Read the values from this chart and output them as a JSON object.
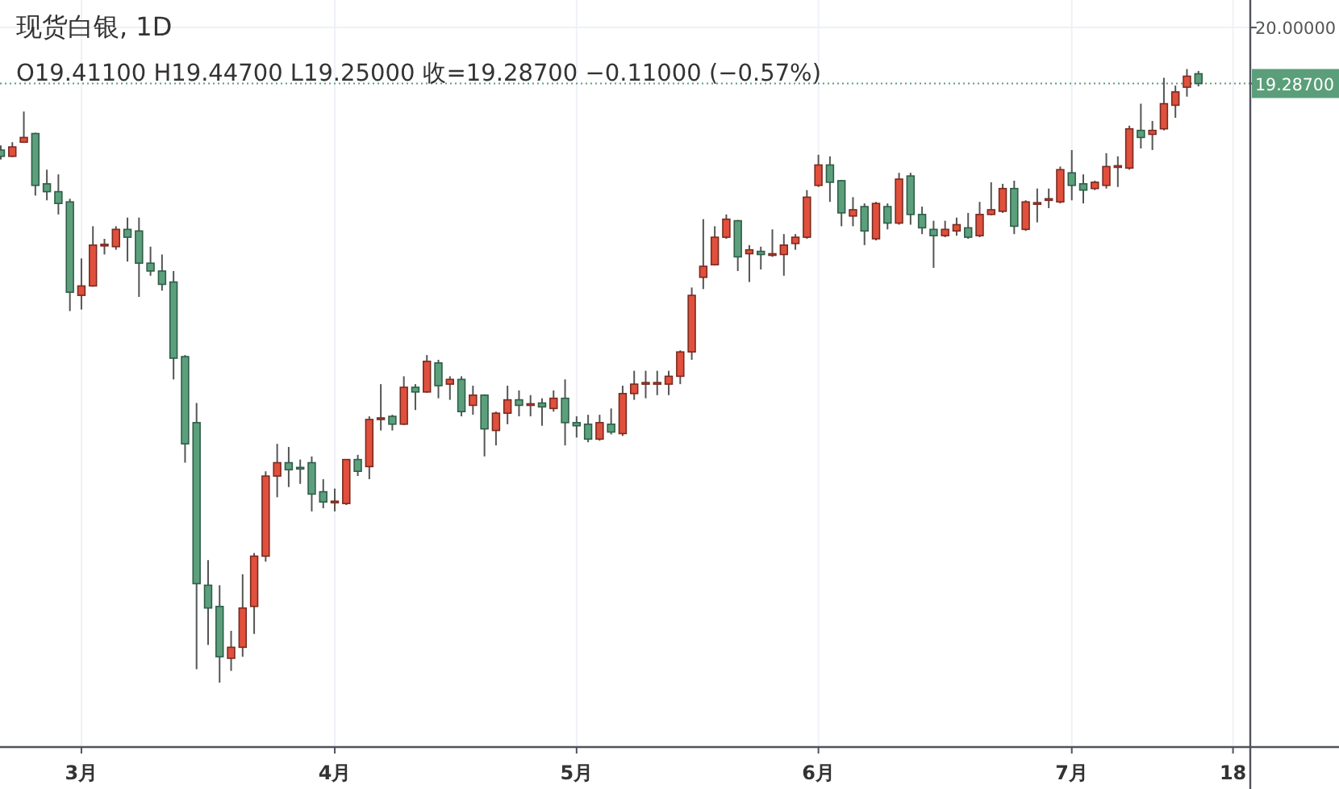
{
  "chart_data": {
    "type": "candlestick",
    "title": "现货白银, 1D",
    "subtitle": "O19.41100  H19.44700  L19.25000  收=19.28700  −0.11000 (−0.57%)",
    "categories": [
      null,
      null,
      null,
      null,
      null,
      null,
      null,
      "3月",
      null,
      null,
      null,
      null,
      null,
      null,
      null,
      null,
      null,
      null,
      null,
      null,
      null,
      null,
      null,
      null,
      null,
      null,
      null,
      null,
      null,
      "4月",
      null,
      null,
      null,
      null,
      null,
      null,
      null,
      null,
      null,
      null,
      null,
      null,
      null,
      null,
      null,
      null,
      null,
      null,
      null,
      null,
      "5月",
      null,
      null,
      null,
      null,
      null,
      null,
      null,
      null,
      null,
      null,
      null,
      null,
      null,
      null,
      null,
      null,
      null,
      null,
      null,
      null,
      "6月",
      null,
      null,
      null,
      null,
      null,
      null,
      null,
      null,
      null,
      null,
      null,
      null,
      null,
      null,
      null,
      null,
      null,
      null,
      null,
      null,
      null,
      "7月",
      null,
      null,
      null,
      null,
      null,
      null,
      null,
      null,
      null,
      null,
      null,
      null,
      null,
      "18"
    ],
    "ohlc": [
      [
        18.44,
        18.5,
        18.32,
        18.36
      ],
      [
        18.36,
        18.54,
        18.35,
        18.48
      ],
      [
        18.54,
        18.93,
        18.53,
        18.6
      ],
      [
        18.65,
        18.66,
        17.86,
        17.99
      ],
      [
        18.01,
        18.19,
        17.8,
        17.91
      ],
      [
        17.91,
        18.13,
        17.62,
        17.76
      ],
      [
        17.78,
        17.82,
        16.39,
        16.63
      ],
      [
        16.59,
        17.06,
        16.41,
        16.71
      ],
      [
        16.71,
        17.47,
        16.7,
        17.23
      ],
      [
        17.23,
        17.31,
        17.11,
        17.24
      ],
      [
        17.21,
        17.47,
        17.17,
        17.43
      ],
      [
        17.43,
        17.58,
        17.02,
        17.33
      ],
      [
        17.41,
        17.58,
        16.57,
        17.0
      ],
      [
        17.0,
        17.21,
        16.84,
        16.9
      ],
      [
        16.9,
        17.11,
        16.65,
        16.73
      ],
      [
        16.76,
        16.9,
        15.52,
        15.79
      ],
      [
        15.81,
        15.83,
        14.46,
        14.7
      ],
      [
        14.97,
        15.22,
        11.83,
        12.92
      ],
      [
        12.9,
        13.22,
        12.14,
        12.61
      ],
      [
        12.63,
        12.9,
        11.66,
        11.99
      ],
      [
        11.97,
        12.32,
        11.81,
        12.11
      ],
      [
        12.11,
        13.04,
        11.99,
        12.61
      ],
      [
        12.63,
        13.31,
        12.28,
        13.27
      ],
      [
        13.27,
        14.35,
        13.2,
        14.29
      ],
      [
        14.29,
        14.7,
        14.02,
        14.46
      ],
      [
        14.46,
        14.66,
        14.15,
        14.37
      ],
      [
        14.4,
        14.5,
        14.19,
        14.39
      ],
      [
        14.46,
        14.54,
        13.84,
        14.06
      ],
      [
        14.09,
        14.25,
        13.88,
        13.96
      ],
      [
        13.96,
        14.13,
        13.84,
        13.97
      ],
      [
        13.94,
        14.5,
        13.92,
        14.5
      ],
      [
        14.5,
        14.56,
        14.29,
        14.35
      ],
      [
        14.41,
        15.05,
        14.25,
        15.01
      ],
      [
        15.02,
        15.46,
        14.87,
        15.03
      ],
      [
        15.05,
        15.07,
        14.87,
        14.95
      ],
      [
        14.95,
        15.56,
        14.94,
        15.42
      ],
      [
        15.42,
        15.46,
        15.13,
        15.36
      ],
      [
        15.36,
        15.83,
        15.35,
        15.75
      ],
      [
        15.73,
        15.77,
        15.28,
        15.44
      ],
      [
        15.46,
        15.56,
        15.26,
        15.52
      ],
      [
        15.52,
        15.56,
        15.05,
        15.11
      ],
      [
        15.19,
        15.44,
        15.07,
        15.32
      ],
      [
        15.32,
        15.33,
        14.54,
        14.89
      ],
      [
        14.87,
        15.11,
        14.68,
        15.09
      ],
      [
        15.09,
        15.44,
        14.95,
        15.26
      ],
      [
        15.26,
        15.38,
        15.05,
        15.19
      ],
      [
        15.2,
        15.32,
        15.05,
        15.21
      ],
      [
        15.22,
        15.28,
        14.93,
        15.17
      ],
      [
        15.15,
        15.38,
        15.11,
        15.28
      ],
      [
        15.28,
        15.52,
        14.68,
        14.97
      ],
      [
        14.97,
        15.05,
        14.78,
        14.93
      ],
      [
        14.95,
        15.07,
        14.72,
        14.76
      ],
      [
        14.76,
        15.07,
        14.74,
        14.97
      ],
      [
        14.95,
        15.15,
        14.82,
        14.85
      ],
      [
        14.83,
        15.44,
        14.8,
        15.34
      ],
      [
        15.34,
        15.63,
        15.26,
        15.46
      ],
      [
        15.47,
        15.63,
        15.28,
        15.48
      ],
      [
        15.47,
        15.63,
        15.32,
        15.48
      ],
      [
        15.46,
        15.63,
        15.32,
        15.56
      ],
      [
        15.56,
        15.89,
        15.46,
        15.87
      ],
      [
        15.87,
        16.69,
        15.77,
        16.59
      ],
      [
        16.82,
        17.56,
        16.67,
        16.96
      ],
      [
        16.98,
        17.47,
        16.97,
        17.33
      ],
      [
        17.33,
        17.62,
        17.31,
        17.56
      ],
      [
        17.54,
        17.55,
        16.9,
        17.08
      ],
      [
        17.12,
        17.23,
        16.76,
        17.17
      ],
      [
        17.15,
        17.21,
        16.92,
        17.11
      ],
      [
        17.11,
        17.43,
        17.08,
        17.12
      ],
      [
        17.11,
        17.37,
        16.84,
        17.23
      ],
      [
        17.25,
        17.37,
        17.17,
        17.33
      ],
      [
        17.33,
        17.93,
        17.31,
        17.84
      ],
      [
        17.99,
        18.38,
        17.97,
        18.25
      ],
      [
        18.25,
        18.36,
        17.78,
        18.03
      ],
      [
        18.05,
        18.06,
        17.47,
        17.64
      ],
      [
        17.6,
        17.84,
        17.47,
        17.68
      ],
      [
        17.72,
        17.76,
        17.23,
        17.41
      ],
      [
        17.31,
        17.78,
        17.29,
        17.76
      ],
      [
        17.72,
        17.76,
        17.43,
        17.51
      ],
      [
        17.51,
        18.15,
        17.49,
        18.07
      ],
      [
        18.11,
        18.15,
        17.49,
        17.62
      ],
      [
        17.62,
        17.72,
        17.37,
        17.45
      ],
      [
        17.43,
        17.54,
        16.94,
        17.35
      ],
      [
        17.35,
        17.54,
        17.33,
        17.43
      ],
      [
        17.41,
        17.58,
        17.35,
        17.49
      ],
      [
        17.45,
        17.64,
        17.31,
        17.33
      ],
      [
        17.35,
        17.78,
        17.33,
        17.62
      ],
      [
        17.62,
        18.03,
        17.61,
        17.68
      ],
      [
        17.66,
        18.01,
        17.64,
        17.95
      ],
      [
        17.95,
        18.05,
        17.37,
        17.47
      ],
      [
        17.43,
        17.8,
        17.41,
        17.78
      ],
      [
        17.76,
        17.95,
        17.52,
        17.77
      ],
      [
        17.8,
        17.95,
        17.7,
        17.82
      ],
      [
        17.78,
        18.23,
        17.76,
        18.19
      ],
      [
        18.15,
        18.44,
        17.8,
        17.99
      ],
      [
        18.01,
        18.13,
        17.76,
        17.93
      ],
      [
        17.95,
        18.05,
        17.93,
        18.03
      ],
      [
        17.99,
        18.4,
        17.95,
        18.23
      ],
      [
        18.23,
        18.36,
        17.97,
        18.24
      ],
      [
        18.21,
        18.75,
        18.19,
        18.71
      ],
      [
        18.69,
        19.03,
        18.46,
        18.6
      ],
      [
        18.64,
        18.81,
        18.44,
        18.69
      ],
      [
        18.71,
        19.36,
        18.69,
        19.03
      ],
      [
        19.01,
        19.26,
        18.85,
        19.18
      ],
      [
        19.24,
        19.47,
        19.12,
        19.38
      ],
      [
        19.411,
        19.447,
        19.25,
        19.287
      ],
      null,
      null,
      null
    ],
    "ylim": [
      10.84,
      20.35
    ],
    "yticks": [
      {
        "value": 20,
        "label": "20.00000"
      },
      {
        "value": 19.287,
        "label": "19.28700"
      }
    ],
    "ref_lines": [
      {
        "axis": "y",
        "value": 19.287,
        "color": "#5b9e7a",
        "line_style": "dotted"
      }
    ],
    "grid": true
  }
}
